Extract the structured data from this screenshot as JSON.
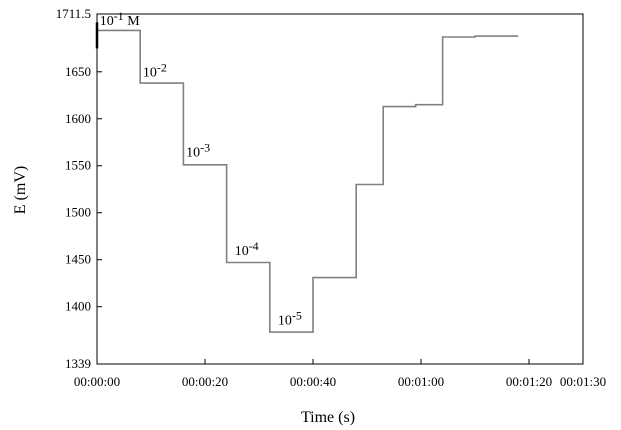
{
  "chart_data": {
    "type": "line",
    "title": "",
    "xlabel": "Time (s)",
    "ylabel": "E (mV)",
    "xlim": [
      0,
      90
    ],
    "ylim": [
      1339,
      1711.5
    ],
    "xticks": [
      0,
      20,
      40,
      60,
      80,
      90
    ],
    "xtick_labels": [
      "00:00:00",
      "00:00:20",
      "00:00:40",
      "00:01:00",
      "00:01:20",
      "00:01:30"
    ],
    "yticks": [
      1339,
      1400,
      1450,
      1500,
      1550,
      1600,
      1650,
      1711.5
    ],
    "ytick_labels": [
      "1339",
      "1400",
      "1450",
      "1500",
      "1550",
      "1600",
      "1650",
      "1711.5"
    ],
    "grid": false,
    "legend": "none",
    "series": [
      {
        "color": "#808080",
        "x": [
          0,
          8,
          8,
          16,
          16,
          24,
          24,
          32,
          32,
          40,
          40,
          48,
          48,
          53,
          53,
          59,
          59,
          64,
          64,
          70,
          70,
          78
        ],
        "y": [
          1694,
          1694,
          1638,
          1638,
          1551,
          1551,
          1447,
          1447,
          1373,
          1373,
          1431,
          1431,
          1530,
          1530,
          1613,
          1613,
          1615,
          1615,
          1687,
          1687,
          1688,
          1688
        ]
      }
    ],
    "annotations": [
      {
        "text": "10",
        "sup": "-1",
        "suffix": " M",
        "x": 0.5,
        "y": 1700
      },
      {
        "text": "10",
        "sup": "-2",
        "suffix": "",
        "x": 8.5,
        "y": 1645
      },
      {
        "text": "10",
        "sup": "-3",
        "suffix": "",
        "x": 16.5,
        "y": 1560
      },
      {
        "text": "10",
        "sup": "-4",
        "suffix": "",
        "x": 25.5,
        "y": 1455
      },
      {
        "text": "10",
        "sup": "-5",
        "suffix": "",
        "x": 33.5,
        "y": 1381
      }
    ]
  }
}
